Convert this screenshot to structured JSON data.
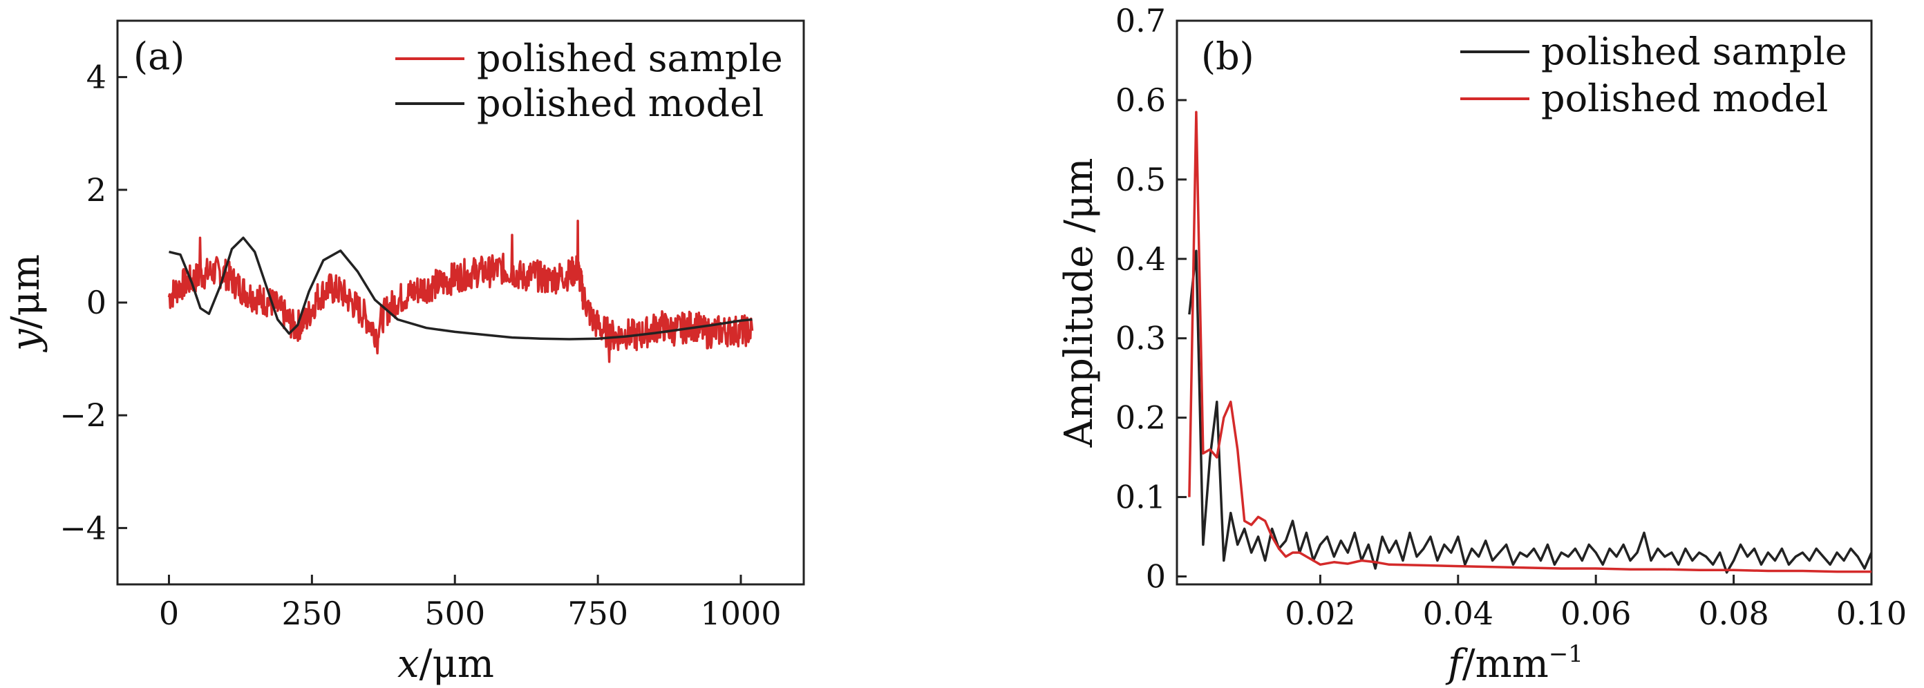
{
  "chart_data": [
    {
      "type": "line",
      "panel": "(a)",
      "xlabel_symbol": "x",
      "xlabel_unit": "/μm",
      "ylabel_symbol": "y",
      "ylabel_unit": "/μm",
      "xlim": [
        -90,
        1110
      ],
      "ylim": [
        -5,
        5
      ],
      "xticks": [
        0,
        250,
        500,
        750,
        1000
      ],
      "xtick_labels": [
        "0",
        "250",
        "500",
        "750",
        "1000"
      ],
      "yticks": [
        4,
        2,
        0,
        -2,
        -4
      ],
      "ytick_labels": [
        "4",
        "2",
        "0",
        "−2",
        "−4"
      ],
      "legend_position": "top-right",
      "series": [
        {
          "name": "polished sample",
          "color": "#d42a2a",
          "noise_amplitude": 0.28,
          "x": [
            0,
            20,
            40,
            60,
            80,
            100,
            120,
            140,
            160,
            180,
            200,
            220,
            240,
            260,
            280,
            300,
            320,
            340,
            360,
            380,
            400,
            420,
            440,
            460,
            480,
            500,
            520,
            540,
            560,
            580,
            600,
            620,
            640,
            660,
            680,
            700,
            715,
            725,
            740,
            760,
            780,
            800,
            820,
            840,
            860,
            880,
            900,
            920,
            940,
            960,
            980,
            1000,
            1020
          ],
          "y": [
            0.1,
            0.3,
            0.4,
            0.5,
            0.55,
            0.5,
            0.3,
            0.15,
            0.05,
            0.0,
            -0.2,
            -0.45,
            -0.3,
            0.1,
            0.25,
            0.2,
            0.0,
            -0.2,
            -0.5,
            -0.15,
            0.05,
            0.15,
            0.25,
            0.3,
            0.35,
            0.45,
            0.5,
            0.55,
            0.55,
            0.6,
            0.55,
            0.45,
            0.5,
            0.4,
            0.45,
            0.5,
            0.6,
            0.1,
            -0.3,
            -0.5,
            -0.6,
            -0.55,
            -0.6,
            -0.5,
            -0.4,
            -0.5,
            -0.45,
            -0.4,
            -0.55,
            -0.5,
            -0.5,
            -0.5,
            -0.5
          ],
          "spikes": [
            [
              715,
              1.45
            ],
            [
              770,
              -1.05
            ],
            [
              365,
              -0.9
            ],
            [
              55,
              1.15
            ],
            [
              600,
              1.2
            ]
          ]
        },
        {
          "name": "polished model",
          "color": "#222222",
          "x": [
            0,
            20,
            40,
            55,
            70,
            90,
            110,
            130,
            150,
            170,
            190,
            210,
            225,
            245,
            270,
            300,
            330,
            360,
            400,
            450,
            500,
            550,
            600,
            650,
            700,
            750,
            800,
            850,
            900,
            950,
            1000,
            1020
          ],
          "y": [
            0.9,
            0.85,
            0.35,
            -0.1,
            -0.2,
            0.3,
            0.95,
            1.15,
            0.9,
            0.3,
            -0.3,
            -0.55,
            -0.4,
            0.2,
            0.75,
            0.92,
            0.55,
            0.05,
            -0.3,
            -0.45,
            -0.52,
            -0.57,
            -0.62,
            -0.64,
            -0.65,
            -0.64,
            -0.6,
            -0.54,
            -0.47,
            -0.4,
            -0.32,
            -0.3
          ]
        }
      ]
    },
    {
      "type": "line",
      "panel": "(b)",
      "xlabel_symbol": "f",
      "xlabel_unit": "/mm",
      "xlabel_exponent": "−1",
      "ylabel": "Amplitude /μm",
      "xlim": [
        -0.0008,
        0.1
      ],
      "ylim": [
        -0.01,
        0.7
      ],
      "xticks": [
        0.02,
        0.04,
        0.06,
        0.08,
        0.1
      ],
      "xtick_labels": [
        "0.02",
        "0.04",
        "0.06",
        "0.08",
        "0.10"
      ],
      "yticks": [
        0,
        0.1,
        0.2,
        0.3,
        0.4,
        0.5,
        0.6,
        0.7
      ],
      "ytick_labels": [
        "0",
        "0.1",
        "0.2",
        "0.3",
        "0.4",
        "0.5",
        "0.6",
        "0.7"
      ],
      "legend_position": "top-right",
      "series": [
        {
          "name": "polished sample",
          "color": "#222222",
          "x": [
            0.001,
            0.002,
            0.003,
            0.004,
            0.005,
            0.006,
            0.007,
            0.008,
            0.009,
            0.01,
            0.011,
            0.012,
            0.013,
            0.014,
            0.015,
            0.016,
            0.017,
            0.018,
            0.019,
            0.02,
            0.021,
            0.022,
            0.023,
            0.024,
            0.025,
            0.026,
            0.027,
            0.028,
            0.029,
            0.03,
            0.031,
            0.032,
            0.033,
            0.034,
            0.035,
            0.036,
            0.037,
            0.038,
            0.039,
            0.04,
            0.041,
            0.042,
            0.043,
            0.044,
            0.045,
            0.046,
            0.047,
            0.048,
            0.049,
            0.05,
            0.051,
            0.052,
            0.053,
            0.054,
            0.055,
            0.056,
            0.057,
            0.058,
            0.059,
            0.06,
            0.061,
            0.062,
            0.063,
            0.064,
            0.065,
            0.066,
            0.067,
            0.068,
            0.069,
            0.07,
            0.071,
            0.072,
            0.073,
            0.074,
            0.075,
            0.076,
            0.077,
            0.078,
            0.079,
            0.08,
            0.081,
            0.082,
            0.083,
            0.084,
            0.085,
            0.086,
            0.087,
            0.088,
            0.089,
            0.09,
            0.091,
            0.092,
            0.093,
            0.094,
            0.095,
            0.096,
            0.097,
            0.098,
            0.099,
            0.1
          ],
          "y": [
            0.33,
            0.41,
            0.04,
            0.15,
            0.22,
            0.02,
            0.08,
            0.04,
            0.06,
            0.03,
            0.05,
            0.02,
            0.06,
            0.035,
            0.045,
            0.07,
            0.03,
            0.055,
            0.02,
            0.04,
            0.05,
            0.025,
            0.045,
            0.03,
            0.055,
            0.02,
            0.04,
            0.01,
            0.05,
            0.03,
            0.045,
            0.02,
            0.055,
            0.025,
            0.035,
            0.05,
            0.02,
            0.04,
            0.03,
            0.05,
            0.015,
            0.035,
            0.025,
            0.045,
            0.02,
            0.03,
            0.04,
            0.015,
            0.03,
            0.025,
            0.035,
            0.02,
            0.04,
            0.015,
            0.03,
            0.025,
            0.035,
            0.02,
            0.04,
            0.03,
            0.015,
            0.035,
            0.025,
            0.04,
            0.02,
            0.03,
            0.055,
            0.02,
            0.035,
            0.025,
            0.03,
            0.015,
            0.035,
            0.02,
            0.03,
            0.025,
            0.015,
            0.03,
            0.005,
            0.02,
            0.04,
            0.025,
            0.035,
            0.015,
            0.03,
            0.02,
            0.035,
            0.015,
            0.025,
            0.03,
            0.02,
            0.035,
            0.025,
            0.015,
            0.03,
            0.02,
            0.035,
            0.025,
            0.01,
            0.03
          ]
        },
        {
          "name": "polished model",
          "color": "#d42a2a",
          "x": [
            0.001,
            0.002,
            0.003,
            0.004,
            0.005,
            0.006,
            0.007,
            0.008,
            0.009,
            0.01,
            0.011,
            0.012,
            0.013,
            0.014,
            0.015,
            0.016,
            0.017,
            0.018,
            0.019,
            0.02,
            0.022,
            0.024,
            0.026,
            0.028,
            0.03,
            0.035,
            0.04,
            0.045,
            0.05,
            0.055,
            0.06,
            0.065,
            0.07,
            0.075,
            0.08,
            0.085,
            0.09,
            0.095,
            0.1
          ],
          "y": [
            0.1,
            0.585,
            0.155,
            0.16,
            0.15,
            0.2,
            0.22,
            0.16,
            0.07,
            0.065,
            0.075,
            0.07,
            0.05,
            0.035,
            0.025,
            0.03,
            0.03,
            0.025,
            0.02,
            0.015,
            0.018,
            0.016,
            0.02,
            0.018,
            0.015,
            0.014,
            0.013,
            0.012,
            0.011,
            0.01,
            0.01,
            0.009,
            0.009,
            0.008,
            0.008,
            0.007,
            0.007,
            0.006,
            0.006
          ]
        }
      ]
    }
  ]
}
